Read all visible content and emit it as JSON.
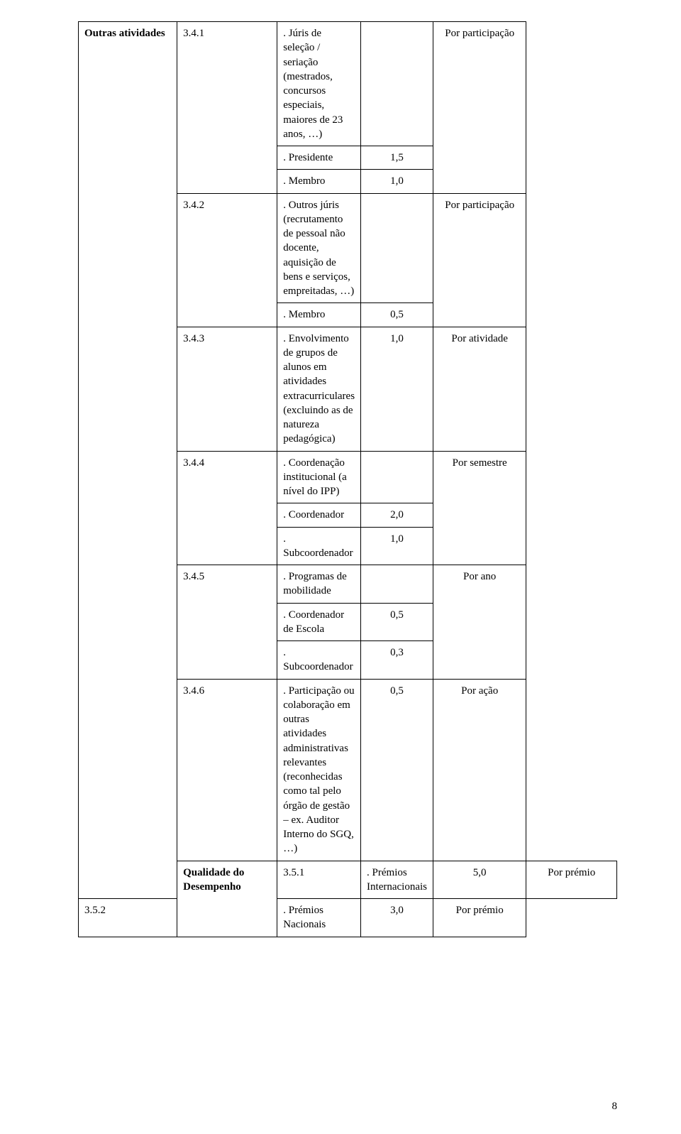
{
  "table": {
    "group1_label": "Outras atividades",
    "group2_label": "Qualidade do Desempenho",
    "rows": {
      "r341": {
        "code": "3.4.1",
        "desc": ". Júris de seleção / seriação (mestrados, concursos especiais, maiores de 23 anos, …)",
        "per": "Por participação",
        "sub": [
          {
            "label": ". Presidente",
            "val": "1,5"
          },
          {
            "label": ". Membro",
            "val": "1,0"
          }
        ]
      },
      "r342": {
        "code": "3.4.2",
        "desc": ". Outros júris (recrutamento de pessoal não docente, aquisição de bens e serviços, empreitadas, …)",
        "per": "Por participação",
        "sub": [
          {
            "label": ". Membro",
            "val": "0,5"
          }
        ]
      },
      "r343": {
        "code": "3.4.3",
        "desc": ". Envolvimento de grupos de alunos em atividades extracurriculares (excluindo as de natureza pedagógica)",
        "val": "1,0",
        "per": "Por atividade"
      },
      "r344": {
        "code": "3.4.4",
        "desc": ". Coordenação institucional (a nível do IPP)",
        "per": "Por semestre",
        "sub": [
          {
            "label": ". Coordenador",
            "val": "2,0"
          },
          {
            "label": ". Subcoordenador",
            "val": "1,0"
          }
        ]
      },
      "r345": {
        "code": "3.4.5",
        "desc": ". Programas de mobilidade",
        "per": "Por ano",
        "sub": [
          {
            "label": ". Coordenador de Escola",
            "val": "0,5"
          },
          {
            "label": ". Subcoordenador",
            "val": "0,3"
          }
        ]
      },
      "r346": {
        "code": "3.4.6",
        "desc": ". Participação ou colaboração em outras atividades administrativas relevantes (reconhecidas como tal pelo órgão de gestão – ex. Auditor Interno do SGQ, …)",
        "val": "0,5",
        "per": "Por ação"
      },
      "r351": {
        "code": "3.5.1",
        "desc": ". Prémios Internacionais",
        "val": "5,0",
        "per": "Por prémio"
      },
      "r352": {
        "code": "3.5.2",
        "desc": ". Prémios Nacionais",
        "val": "3,0",
        "per": "Por prémio"
      }
    }
  },
  "page_number": "8"
}
